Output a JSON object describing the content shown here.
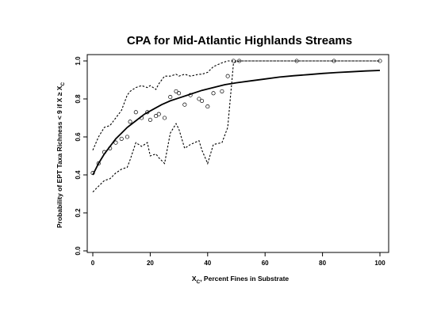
{
  "chart_data": {
    "type": "scatter",
    "title": "CPA for Mid-Atlantic Highlands Streams",
    "xlabel": {
      "main": "X",
      "sub": "C",
      "rest": ", Percent Fines in Substrate"
    },
    "ylabel": {
      "main": "Probability of EPT Taxa Richness < 9 if X ≥ X",
      "sub": "C"
    },
    "xlim": [
      0,
      100
    ],
    "ylim": [
      0,
      1
    ],
    "xticks": [
      "0",
      "20",
      "40",
      "60",
      "80",
      "100"
    ],
    "yticks": [
      "0.0",
      "0.2",
      "0.4",
      "0.6",
      "0.8",
      "1.0"
    ],
    "series": [
      {
        "style": "points",
        "x": [
          0,
          2,
          4,
          6,
          8,
          10,
          12,
          13,
          15,
          17,
          19,
          20,
          22,
          23,
          25,
          27,
          29,
          30,
          32,
          34,
          37,
          38,
          40,
          42,
          45,
          47,
          49,
          51,
          71,
          84,
          100
        ],
        "y": [
          0.41,
          0.46,
          0.52,
          0.54,
          0.57,
          0.59,
          0.6,
          0.68,
          0.73,
          0.7,
          0.73,
          0.69,
          0.71,
          0.72,
          0.7,
          0.81,
          0.84,
          0.83,
          0.77,
          0.82,
          0.8,
          0.79,
          0.76,
          0.83,
          0.84,
          0.92,
          1.0,
          1.0,
          1.0,
          1.0,
          1.0
        ]
      },
      {
        "style": "solid",
        "x": [
          0,
          2,
          4,
          6,
          8,
          10,
          12,
          15,
          18,
          21,
          24,
          27,
          30,
          34,
          38,
          42,
          46,
          50,
          55,
          60,
          65,
          70,
          75,
          80,
          85,
          90,
          95,
          100
        ],
        "y": [
          0.4,
          0.46,
          0.51,
          0.55,
          0.59,
          0.62,
          0.65,
          0.685,
          0.72,
          0.745,
          0.77,
          0.79,
          0.805,
          0.825,
          0.845,
          0.86,
          0.875,
          0.885,
          0.895,
          0.905,
          0.915,
          0.922,
          0.928,
          0.934,
          0.939,
          0.943,
          0.947,
          0.95
        ]
      },
      {
        "style": "dashed",
        "x": [
          0,
          2,
          4,
          6,
          8,
          10,
          12,
          13,
          15,
          17,
          19,
          20,
          22,
          23,
          25,
          27,
          29,
          30,
          32,
          34,
          37,
          38,
          40,
          42,
          45,
          47,
          49,
          51,
          71,
          84,
          100
        ],
        "y": [
          0.53,
          0.6,
          0.65,
          0.66,
          0.7,
          0.74,
          0.82,
          0.84,
          0.86,
          0.87,
          0.86,
          0.87,
          0.85,
          0.88,
          0.92,
          0.92,
          0.93,
          0.92,
          0.93,
          0.92,
          0.93,
          0.93,
          0.94,
          0.97,
          0.99,
          1.0,
          1.0,
          1.0,
          1.0,
          1.0,
          1.0
        ]
      },
      {
        "style": "dashed",
        "x": [
          0,
          2,
          4,
          6,
          8,
          10,
          12,
          13,
          15,
          17,
          19,
          20,
          22,
          23,
          25,
          27,
          29,
          30,
          32,
          34,
          37,
          38,
          40,
          42,
          45,
          47,
          49,
          51,
          71,
          84,
          100
        ],
        "y": [
          0.31,
          0.34,
          0.37,
          0.38,
          0.41,
          0.43,
          0.44,
          0.48,
          0.57,
          0.55,
          0.57,
          0.5,
          0.51,
          0.49,
          0.46,
          0.62,
          0.67,
          0.64,
          0.54,
          0.56,
          0.58,
          0.53,
          0.46,
          0.56,
          0.57,
          0.65,
          0.99,
          1.0,
          1.0,
          1.0,
          1.0
        ]
      }
    ]
  }
}
